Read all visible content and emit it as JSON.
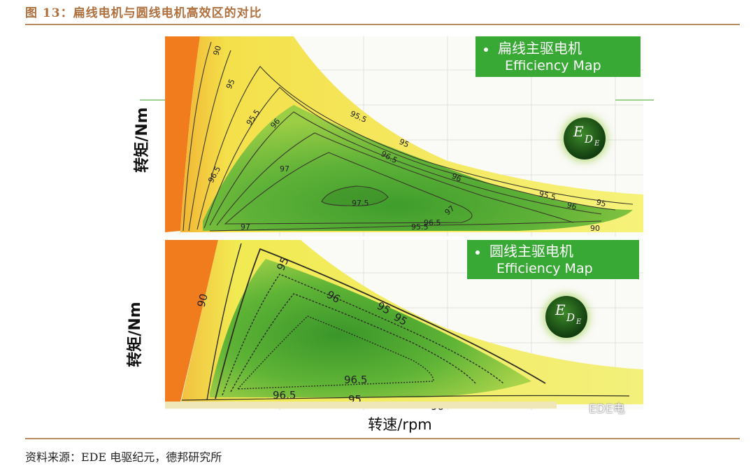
{
  "figure": {
    "title": "图 13：扁线电机与圆线电机高效区的对比",
    "source": "资料来源：EDE 电驱纪元，德邦研究所",
    "watermark": "EDE电"
  },
  "chart_data": [
    {
      "type": "heatmap",
      "panel": "top",
      "title": "",
      "legend": {
        "line1": "扁线主驱电机",
        "line2": "Efficiency Map",
        "placement": "top-right"
      },
      "logo_text": {
        "main": "E",
        "sub1": "D",
        "sub2": "E"
      },
      "xlabel": "",
      "ylabel": "转矩/Nm",
      "contour_levels": [
        90,
        95,
        95.5,
        96,
        96.5,
        97,
        97.5
      ],
      "contour_labels": [
        "90",
        "95",
        "95.5",
        "96",
        "96.5",
        "97",
        "97.5",
        "95.5",
        "96.5",
        "96",
        "97",
        "95.5",
        "95",
        "95",
        "96.5",
        "97",
        "95.5",
        "96",
        "90"
      ],
      "grid": true
    },
    {
      "type": "heatmap",
      "panel": "bottom",
      "title": "",
      "legend": {
        "line1": "圆线主驱电机",
        "line2": "Efficiency Map",
        "placement": "top-right"
      },
      "logo_text": {
        "main": "E",
        "sub1": "D",
        "sub2": "E"
      },
      "xlabel": "转速/rpm",
      "ylabel": "转矩/Nm",
      "contour_levels": [
        90,
        95,
        96,
        96.5
      ],
      "contour_labels": [
        "90",
        "95",
        "96",
        "95",
        "95",
        "96.5",
        "96.5",
        "95",
        "90"
      ],
      "grid": true
    }
  ],
  "colors": {
    "title": "#b0703e",
    "rule": "#b48a62",
    "legend_bg": "#39a935",
    "orange": "#f07c1e",
    "yellow": "#f2ef5a",
    "green_light": "#a9d24b",
    "green_mid": "#6fbd3a",
    "green_dark": "#3f9b2c"
  }
}
